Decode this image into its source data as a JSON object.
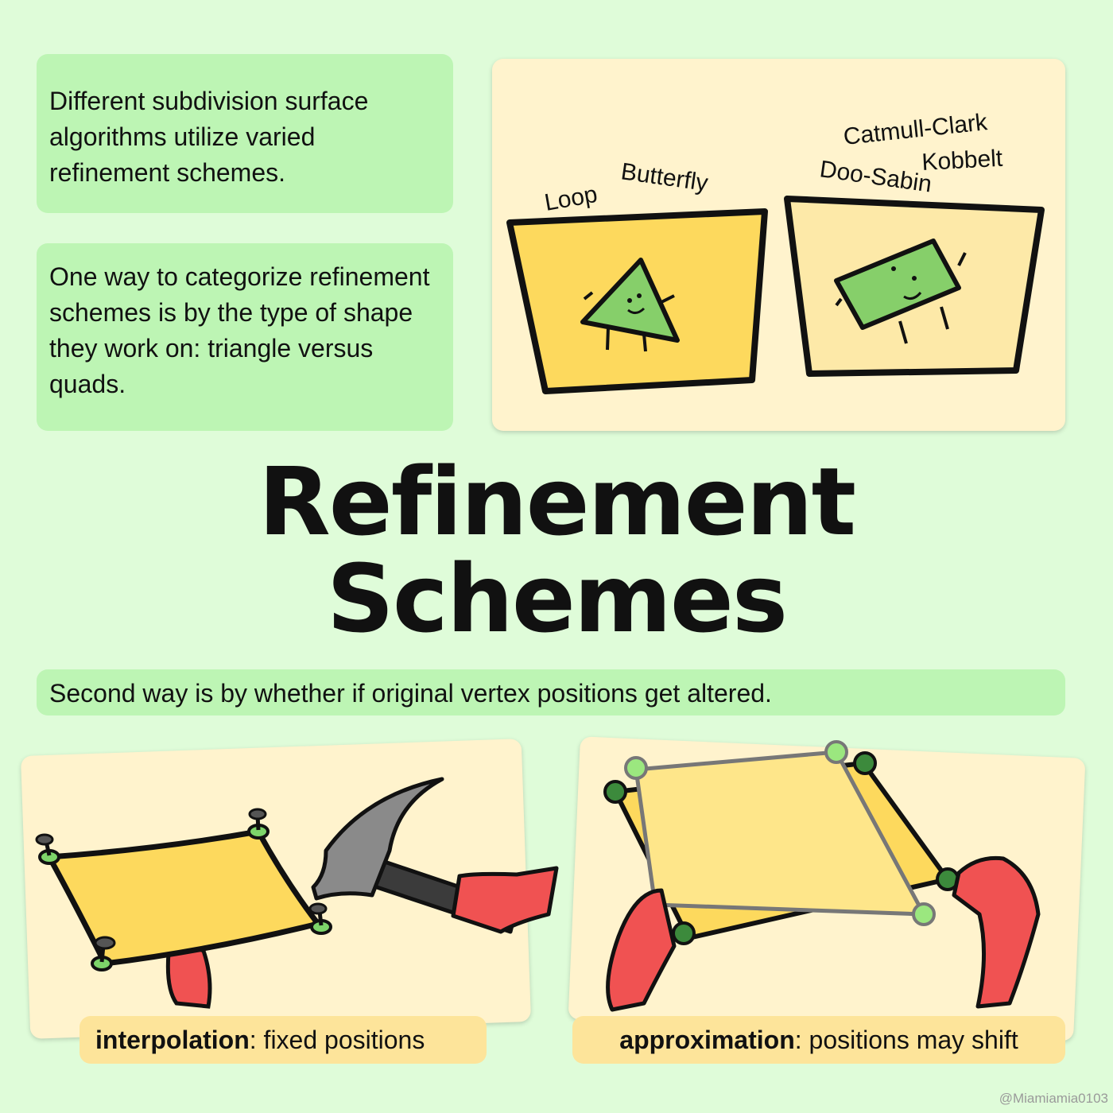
{
  "note1": "Different subdivision surface algorithms utilize varied refinement schemes.",
  "note2": "One way to categorize refinement schemes is by the type of shape they work on: triangle versus quads.",
  "triangle_schemes": [
    "Loop",
    "Butterfly"
  ],
  "quad_schemes": [
    "Catmull-Clark",
    "Kobbelt",
    "Doo-Sabin"
  ],
  "title": {
    "line1": "Refinement",
    "line2": "Schemes"
  },
  "note3": "Second way is by whether if original vertex positions get altered.",
  "interpolation": {
    "term": "interpolation",
    "desc": ": fixed positions"
  },
  "approximation": {
    "term": "approximation",
    "desc": ": positions may shift"
  },
  "credit": "@Miamiamia0103",
  "colors": {
    "background": "#dffcd9",
    "note": "#bdf5b4",
    "card": "#fff3cd",
    "caption": "#fde49a",
    "bucket_triangle": "#fdd95d",
    "bucket_quad": "#fde9a8",
    "shape_green": "#86cf6a",
    "glove_red": "#f05252",
    "sheet_yellow": "#fdd95d",
    "pin_green": "#7dd56a"
  }
}
